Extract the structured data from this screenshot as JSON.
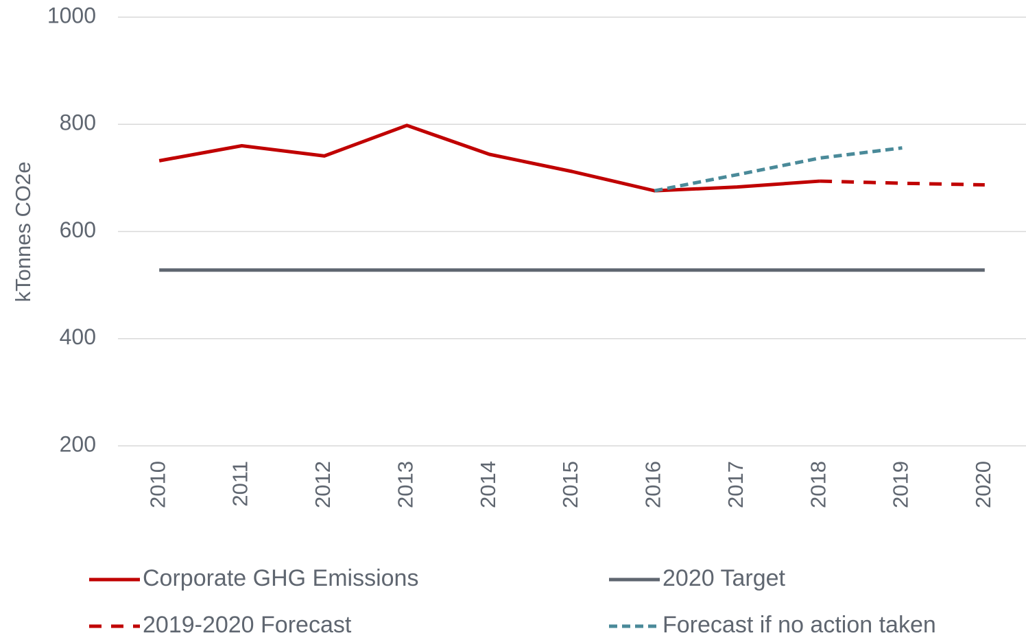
{
  "chart_data": {
    "type": "line",
    "y_label": "kTonnes CO2e",
    "categories": [
      "2010",
      "2011",
      "2012",
      "2013",
      "2014",
      "2015",
      "2016",
      "2017",
      "2018",
      "2019",
      "2020"
    ],
    "series": [
      {
        "name": "Corporate GHG Emissions",
        "color": "#c00000",
        "style": "solid",
        "values": [
          732,
          760,
          741,
          798,
          744,
          712,
          676,
          683,
          694,
          null,
          null
        ]
      },
      {
        "name": "2020 Target",
        "color": "#5f6670",
        "style": "solid",
        "values": [
          528,
          528,
          528,
          528,
          528,
          528,
          528,
          528,
          528,
          528,
          528
        ]
      },
      {
        "name": "2019-2020 Forecast",
        "color": "#c00000",
        "style": "dashed",
        "values": [
          null,
          null,
          null,
          null,
          null,
          null,
          null,
          null,
          694,
          690,
          687
        ]
      },
      {
        "name": "Forecast if no action taken",
        "color": "#4a8a99",
        "style": "dotted",
        "values": [
          null,
          null,
          null,
          null,
          null,
          null,
          676,
          706,
          737,
          756,
          null
        ]
      }
    ],
    "ylim": [
      200,
      1000
    ],
    "yticks": [
      200,
      400,
      600,
      800,
      1000
    ],
    "grid": true,
    "legend": "bottom"
  }
}
